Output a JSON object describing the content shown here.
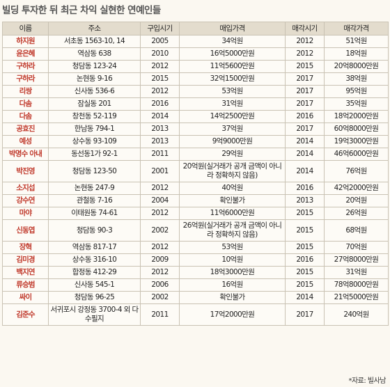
{
  "title": "빌딩 투자한 뒤 최근 차익 실현한 연예인들",
  "headers": [
    "이름",
    "주소",
    "구입시기",
    "매입가격",
    "매각시기",
    "매각가격"
  ],
  "rows": [
    {
      "name": "하지원",
      "address": "서초동 1563-10, 14",
      "buy_year": "2005",
      "buy_price": "34억원",
      "sell_year": "2012",
      "sell_price": "51억원"
    },
    {
      "name": "윤은혜",
      "address": "역삼동 638",
      "buy_year": "2010",
      "buy_price": "16억5000만원",
      "sell_year": "2012",
      "sell_price": "18억원"
    },
    {
      "name": "구하라",
      "address": "청담동 123-24",
      "buy_year": "2012",
      "buy_price": "11억5600만원",
      "sell_year": "2015",
      "sell_price": "20억8000만원"
    },
    {
      "name": "구하라",
      "address": "논현동 9-16",
      "buy_year": "2015",
      "buy_price": "32억1500만원",
      "sell_year": "2017",
      "sell_price": "38억원"
    },
    {
      "name": "리쌍",
      "address": "신사동 536-6",
      "buy_year": "2012",
      "buy_price": "53억원",
      "sell_year": "2017",
      "sell_price": "95억원"
    },
    {
      "name": "다솜",
      "address": "잠실동 201",
      "buy_year": "2016",
      "buy_price": "31억원",
      "sell_year": "2017",
      "sell_price": "35억원"
    },
    {
      "name": "다솜",
      "address": "창천동 52-119",
      "buy_year": "2014",
      "buy_price": "14억2500만원",
      "sell_year": "2016",
      "sell_price": "18억2000만원"
    },
    {
      "name": "공효진",
      "address": "한남동 794-1",
      "buy_year": "2013",
      "buy_price": "37억원",
      "sell_year": "2017",
      "sell_price": "60억8000만원"
    },
    {
      "name": "예성",
      "address": "상수동 93-109",
      "buy_year": "2013",
      "buy_price": "9억9000만원",
      "sell_year": "2014",
      "sell_price": "19억3000만원"
    },
    {
      "name": "박명수 아내",
      "address": "동선동1가 92-1",
      "buy_year": "2011",
      "buy_price": "29억원",
      "sell_year": "2014",
      "sell_price": "46억6000만원"
    },
    {
      "name": "박진영",
      "address": "청담동 123-50",
      "buy_year": "2001",
      "buy_price": "20억원(실거래가 공개 금액이 아니라 정확하지 않음)",
      "sell_year": "2014",
      "sell_price": "76억원",
      "tall": true
    },
    {
      "name": "소지섭",
      "address": "논현동 247-9",
      "buy_year": "2012",
      "buy_price": "40억원",
      "sell_year": "2016",
      "sell_price": "42억2000만원"
    },
    {
      "name": "강수연",
      "address": "관철동 7-16",
      "buy_year": "2004",
      "buy_price": "확인불가",
      "sell_year": "2013",
      "sell_price": "20억원"
    },
    {
      "name": "마야",
      "address": "이태원동 74-61",
      "buy_year": "2012",
      "buy_price": "11억6000만원",
      "sell_year": "2015",
      "sell_price": "26억원"
    },
    {
      "name": "신동엽",
      "address": "청담동 90-3",
      "buy_year": "2002",
      "buy_price": "26억원(실거래가 공개 금액이 아니라 정확하지 않음)",
      "sell_year": "2015",
      "sell_price": "68억원",
      "tall": true
    },
    {
      "name": "장혁",
      "address": "역삼동 817-17",
      "buy_year": "2012",
      "buy_price": "53억원",
      "sell_year": "2015",
      "sell_price": "70억원"
    },
    {
      "name": "김미경",
      "address": "상수동 316-10",
      "buy_year": "2009",
      "buy_price": "10억원",
      "sell_year": "2016",
      "sell_price": "27억8000만원"
    },
    {
      "name": "백지연",
      "address": "합정동 412-29",
      "buy_year": "2012",
      "buy_price": "18억3000만원",
      "sell_year": "2015",
      "sell_price": "31억원"
    },
    {
      "name": "류승범",
      "address": "신사동 545-1",
      "buy_year": "2006",
      "buy_price": "16억원",
      "sell_year": "2015",
      "sell_price": "78억8000만원"
    },
    {
      "name": "싸이",
      "address": "청담동 96-25",
      "buy_year": "2002",
      "buy_price": "확인불가",
      "sell_year": "2014",
      "sell_price": "21억5000만원"
    },
    {
      "name": "김준수",
      "address": "서귀포시 강정동 3700-4 외 다수필지",
      "buy_year": "2011",
      "buy_price": "17억2000만원",
      "sell_year": "2017",
      "sell_price": "240억원",
      "tall": true
    }
  ],
  "source": "*자료: 빌사남",
  "colors": {
    "name_red": "#c0392b",
    "header_bg": "#e3dccd",
    "border": "#c9c2b3"
  }
}
